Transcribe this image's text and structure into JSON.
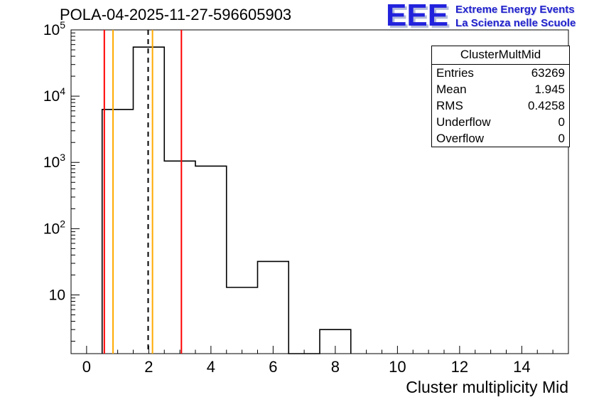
{
  "page_title": "POLA-04-2025-11-27-596605903",
  "logo": {
    "acronym": "EEE",
    "line1": "Extreme Energy Events",
    "line2": "La Scienza nelle Scuole",
    "color": "#2222cc"
  },
  "stats": {
    "title": "ClusterMultMid",
    "rows": [
      {
        "label": "Entries",
        "value": "63269"
      },
      {
        "label": "Mean",
        "value": "1.945"
      },
      {
        "label": "RMS",
        "value": "0.4258"
      },
      {
        "label": "Underflow",
        "value": "0"
      },
      {
        "label": "Overflow",
        "value": "0"
      }
    ]
  },
  "chart_data": {
    "type": "bar",
    "subtype": "step-histogram-logy",
    "title": "POLA-04-2025-11-27-596605903",
    "xlabel": "Cluster multiplicity Mid",
    "ylabel": "",
    "x_range": [
      -0.5,
      15.5
    ],
    "y_range": [
      1.3,
      100000
    ],
    "y_scale": "log",
    "grid": false,
    "x_ticks": [
      0,
      2,
      4,
      6,
      8,
      10,
      12,
      14
    ],
    "x_minor_step": 0.5,
    "y_ticks": [
      {
        "value": 10,
        "exp": ""
      },
      {
        "value": 100,
        "exp": "2"
      },
      {
        "value": 1000,
        "exp": "3"
      },
      {
        "value": 10000,
        "exp": "4"
      },
      {
        "value": 100000,
        "exp": "5"
      }
    ],
    "line_color": "#000000",
    "bins": [
      {
        "x0": 0.5,
        "x1": 1.5,
        "y": 6300
      },
      {
        "x0": 1.5,
        "x1": 2.5,
        "y": 55000
      },
      {
        "x0": 2.5,
        "x1": 3.5,
        "y": 1050
      },
      {
        "x0": 3.5,
        "x1": 4.5,
        "y": 880
      },
      {
        "x0": 4.5,
        "x1": 5.5,
        "y": 13
      },
      {
        "x0": 5.5,
        "x1": 6.5,
        "y": 32
      },
      {
        "x0": 7.5,
        "x1": 8.5,
        "y": 3
      }
    ],
    "marker_lines": [
      {
        "x": 0.57,
        "color": "#ff0000",
        "style": "solid"
      },
      {
        "x": 0.85,
        "color": "#ffaa00",
        "style": "solid"
      },
      {
        "x": 1.98,
        "color": "#000000",
        "style": "dashed"
      },
      {
        "x": 2.12,
        "color": "#ffaa00",
        "style": "solid"
      },
      {
        "x": 3.05,
        "color": "#ff0000",
        "style": "solid"
      }
    ]
  }
}
